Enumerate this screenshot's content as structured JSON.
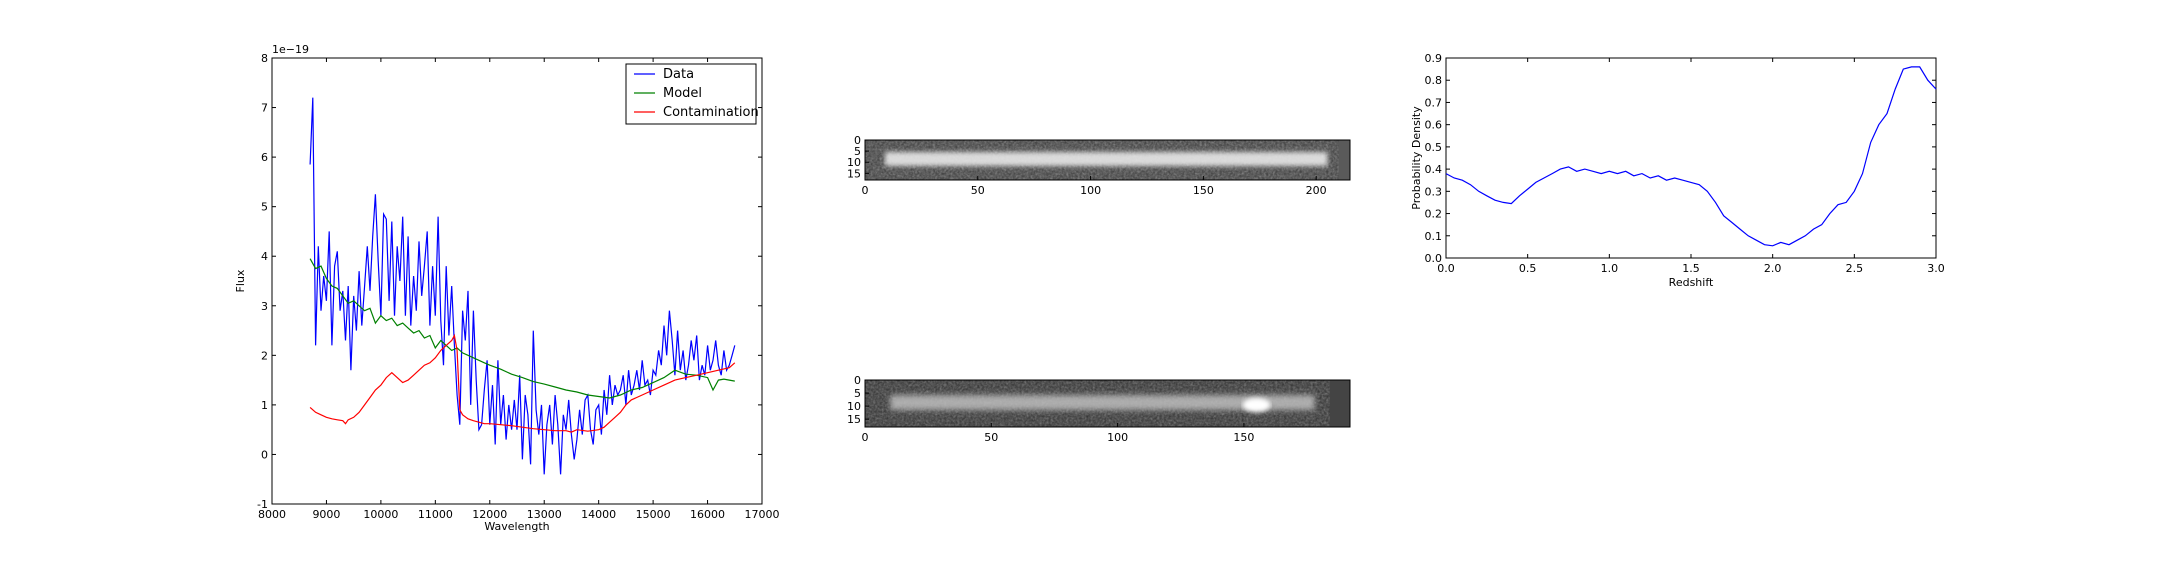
{
  "chart_data": [
    {
      "id": "spectrum",
      "type": "line",
      "xlabel": "Wavelength",
      "ylabel": "Flux",
      "offset_text": "1e−19",
      "xlim": [
        8000,
        17000
      ],
      "ylim": [
        -1,
        8
      ],
      "xticks": [
        8000,
        9000,
        10000,
        11000,
        12000,
        13000,
        14000,
        15000,
        16000,
        17000
      ],
      "yticks": [
        -1,
        0,
        1,
        2,
        3,
        4,
        5,
        6,
        7,
        8
      ],
      "legend": "top-right",
      "series": [
        {
          "name": "Data",
          "color": "#0000ff",
          "x": [
            8700,
            8750,
            8800,
            8850,
            8900,
            8950,
            9000,
            9050,
            9100,
            9150,
            9200,
            9250,
            9300,
            9350,
            9400,
            9450,
            9500,
            9550,
            9600,
            9650,
            9700,
            9750,
            9800,
            9850,
            9900,
            9950,
            10000,
            10050,
            10100,
            10150,
            10200,
            10250,
            10300,
            10350,
            10400,
            10450,
            10500,
            10550,
            10600,
            10650,
            10700,
            10750,
            10800,
            10850,
            10900,
            10950,
            11000,
            11050,
            11100,
            11150,
            11200,
            11250,
            11300,
            11350,
            11400,
            11450,
            11500,
            11550,
            11600,
            11650,
            11700,
            11750,
            11800,
            11850,
            11900,
            11950,
            12000,
            12050,
            12100,
            12150,
            12200,
            12250,
            12300,
            12350,
            12400,
            12450,
            12500,
            12550,
            12600,
            12650,
            12700,
            12750,
            12800,
            12850,
            12900,
            12950,
            13000,
            13050,
            13100,
            13150,
            13200,
            13250,
            13300,
            13350,
            13400,
            13450,
            13500,
            13550,
            13600,
            13650,
            13700,
            13750,
            13800,
            13850,
            13900,
            13950,
            14000,
            14050,
            14100,
            14150,
            14200,
            14250,
            14300,
            14350,
            14400,
            14450,
            14500,
            14550,
            14600,
            14650,
            14700,
            14750,
            14800,
            14850,
            14900,
            14950,
            15000,
            15050,
            15100,
            15150,
            15200,
            15250,
            15300,
            15350,
            15400,
            15450,
            15500,
            15550,
            15600,
            15650,
            15700,
            15750,
            15800,
            15850,
            15900,
            15950,
            16000,
            16050,
            16100,
            16150,
            16200,
            16250,
            16300,
            16350,
            16400,
            16450,
            16500
          ],
          "y": [
            5.85,
            7.2,
            2.2,
            4.2,
            2.9,
            3.6,
            3.1,
            4.5,
            2.2,
            3.8,
            4.1,
            2.9,
            3.3,
            2.3,
            3.4,
            1.7,
            3.2,
            2.5,
            3.7,
            2.6,
            3.4,
            4.2,
            3.3,
            4.4,
            5.25,
            3.9,
            2.8,
            4.85,
            4.75,
            3.1,
            4.7,
            2.8,
            4.2,
            3.5,
            4.8,
            2.8,
            4.4,
            2.6,
            3.6,
            2.9,
            4.3,
            3.2,
            3.8,
            4.5,
            2.6,
            3.8,
            2.8,
            4.8,
            2.7,
            1.8,
            3.8,
            2.4,
            3.4,
            2.2,
            1.2,
            0.6,
            2.9,
            2.3,
            3.3,
            1.0,
            2.9,
            1.5,
            0.5,
            0.6,
            1.3,
            1.9,
            0.6,
            1.4,
            0.2,
            1.9,
            0.6,
            1.2,
            0.3,
            1.0,
            0.5,
            1.1,
            0.5,
            1.6,
            -0.1,
            1.2,
            0.8,
            -0.2,
            2.5,
            0.9,
            0.4,
            1.0,
            -0.4,
            0.6,
            1.0,
            0.2,
            1.2,
            0.6,
            -0.4,
            0.8,
            0.5,
            1.1,
            0.4,
            -0.1,
            0.3,
            0.9,
            0.4,
            1.1,
            1.2,
            0.5,
            0.2,
            0.9,
            1.0,
            0.4,
            1.3,
            0.8,
            1.6,
            1.0,
            1.4,
            1.2,
            1.3,
            1.6,
            1.0,
            1.7,
            1.2,
            1.4,
            1.7,
            1.3,
            1.9,
            1.4,
            1.5,
            1.2,
            1.7,
            1.6,
            2.1,
            1.8,
            2.6,
            2.0,
            2.9,
            2.3,
            1.6,
            2.5,
            1.7,
            2.1,
            1.5,
            1.8,
            2.3,
            1.9,
            2.4,
            1.5,
            1.8,
            1.6,
            2.2,
            1.7,
            1.9,
            2.3,
            1.8,
            1.6,
            2.1,
            1.7,
            1.8,
            2.0,
            2.2
          ]
        },
        {
          "name": "Model",
          "color": "#008000",
          "x": [
            8700,
            8800,
            8900,
            9000,
            9100,
            9200,
            9300,
            9400,
            9500,
            9600,
            9700,
            9800,
            9900,
            10000,
            10100,
            10200,
            10300,
            10400,
            10500,
            10600,
            10700,
            10800,
            10900,
            11000,
            11100,
            11200,
            11300,
            11400,
            11500,
            11600,
            11700,
            11800,
            11900,
            12000,
            12200,
            12400,
            12600,
            12800,
            13000,
            13200,
            13400,
            13600,
            13800,
            14000,
            14200,
            14400,
            14600,
            14800,
            15000,
            15200,
            15400,
            15600,
            15800,
            16000,
            16100,
            16200,
            16300,
            16400,
            16500
          ],
          "y": [
            3.95,
            3.75,
            3.8,
            3.55,
            3.4,
            3.35,
            3.2,
            3.05,
            3.1,
            3.0,
            2.9,
            2.95,
            2.65,
            2.8,
            2.7,
            2.75,
            2.6,
            2.65,
            2.55,
            2.45,
            2.5,
            2.35,
            2.4,
            2.15,
            2.3,
            2.2,
            2.1,
            2.15,
            2.05,
            2.0,
            1.95,
            1.9,
            1.85,
            1.8,
            1.72,
            1.62,
            1.55,
            1.47,
            1.42,
            1.36,
            1.3,
            1.26,
            1.2,
            1.17,
            1.14,
            1.2,
            1.3,
            1.35,
            1.45,
            1.55,
            1.7,
            1.62,
            1.6,
            1.55,
            1.3,
            1.5,
            1.52,
            1.5,
            1.48
          ]
        },
        {
          "name": "Contamination",
          "color": "#ff0000",
          "x": [
            8700,
            8800,
            8900,
            9000,
            9100,
            9200,
            9300,
            9350,
            9400,
            9500,
            9600,
            9700,
            9800,
            9900,
            10000,
            10100,
            10200,
            10300,
            10400,
            10500,
            10600,
            10700,
            10800,
            10900,
            11000,
            11100,
            11200,
            11300,
            11350,
            11400,
            11450,
            11500,
            11600,
            11700,
            11800,
            11900,
            12000,
            12200,
            12400,
            12600,
            12800,
            13000,
            13200,
            13400,
            13500,
            13600,
            13800,
            14000,
            14100,
            14200,
            14300,
            14400,
            14500,
            14600,
            14800,
            15000,
            15200,
            15400,
            15600,
            15800,
            16000,
            16200,
            16400,
            16500
          ],
          "y": [
            0.95,
            0.85,
            0.8,
            0.75,
            0.72,
            0.7,
            0.68,
            0.62,
            0.7,
            0.75,
            0.85,
            1.0,
            1.15,
            1.3,
            1.4,
            1.55,
            1.65,
            1.55,
            1.45,
            1.5,
            1.6,
            1.7,
            1.8,
            1.85,
            1.95,
            2.1,
            2.2,
            2.3,
            2.4,
            2.1,
            0.9,
            0.8,
            0.72,
            0.68,
            0.65,
            0.62,
            0.62,
            0.6,
            0.58,
            0.55,
            0.52,
            0.5,
            0.48,
            0.48,
            0.45,
            0.5,
            0.47,
            0.5,
            0.55,
            0.65,
            0.75,
            0.85,
            1.0,
            1.1,
            1.2,
            1.3,
            1.4,
            1.5,
            1.55,
            1.6,
            1.65,
            1.7,
            1.75,
            1.85
          ]
        }
      ]
    },
    {
      "id": "image1",
      "type": "heatmap",
      "colormap": "gray",
      "xlim": [
        0,
        215
      ],
      "ylim": [
        18,
        0
      ],
      "xticks": [
        0,
        50,
        100,
        150,
        200
      ],
      "yticks": [
        0,
        5,
        10,
        15
      ],
      "bright_band": [
        175,
        205
      ]
    },
    {
      "id": "image2",
      "type": "heatmap",
      "colormap": "gray",
      "xlim": [
        0,
        192
      ],
      "ylim": [
        18,
        0
      ],
      "xticks": [
        0,
        50,
        100,
        150
      ],
      "yticks": [
        0,
        5,
        10,
        15
      ],
      "bright_spot": 155
    },
    {
      "id": "pdf",
      "type": "line",
      "xlabel": "Redshift",
      "ylabel": "Probability Density",
      "xlim": [
        0,
        3
      ],
      "ylim": [
        0,
        0.9
      ],
      "xticks": [
        "0.0",
        "0.5",
        "1.0",
        "1.5",
        "2.0",
        "2.5",
        "3.0"
      ],
      "yticks": [
        "0.0",
        "0.1",
        "0.2",
        "0.3",
        "0.4",
        "0.5",
        "0.6",
        "0.7",
        "0.8",
        "0.9"
      ],
      "series": [
        {
          "color": "#0000ff",
          "x": [
            0.0,
            0.05,
            0.1,
            0.15,
            0.2,
            0.25,
            0.3,
            0.35,
            0.4,
            0.45,
            0.5,
            0.55,
            0.6,
            0.65,
            0.7,
            0.75,
            0.8,
            0.85,
            0.9,
            0.95,
            1.0,
            1.05,
            1.1,
            1.15,
            1.2,
            1.25,
            1.3,
            1.35,
            1.4,
            1.45,
            1.5,
            1.55,
            1.6,
            1.65,
            1.7,
            1.75,
            1.8,
            1.85,
            1.9,
            1.95,
            2.0,
            2.05,
            2.1,
            2.15,
            2.2,
            2.25,
            2.3,
            2.35,
            2.4,
            2.45,
            2.5,
            2.55,
            2.6,
            2.65,
            2.7,
            2.75,
            2.8,
            2.85,
            2.9,
            2.95,
            3.0
          ],
          "y": [
            0.38,
            0.36,
            0.35,
            0.33,
            0.3,
            0.28,
            0.26,
            0.25,
            0.245,
            0.28,
            0.31,
            0.34,
            0.36,
            0.38,
            0.4,
            0.41,
            0.39,
            0.4,
            0.39,
            0.38,
            0.39,
            0.38,
            0.39,
            0.37,
            0.38,
            0.36,
            0.37,
            0.35,
            0.36,
            0.35,
            0.34,
            0.33,
            0.3,
            0.25,
            0.19,
            0.16,
            0.13,
            0.1,
            0.08,
            0.06,
            0.055,
            0.07,
            0.06,
            0.08,
            0.1,
            0.13,
            0.15,
            0.2,
            0.24,
            0.25,
            0.3,
            0.38,
            0.52,
            0.6,
            0.65,
            0.76,
            0.85,
            0.86,
            0.86,
            0.8,
            0.76
          ]
        }
      ]
    }
  ]
}
